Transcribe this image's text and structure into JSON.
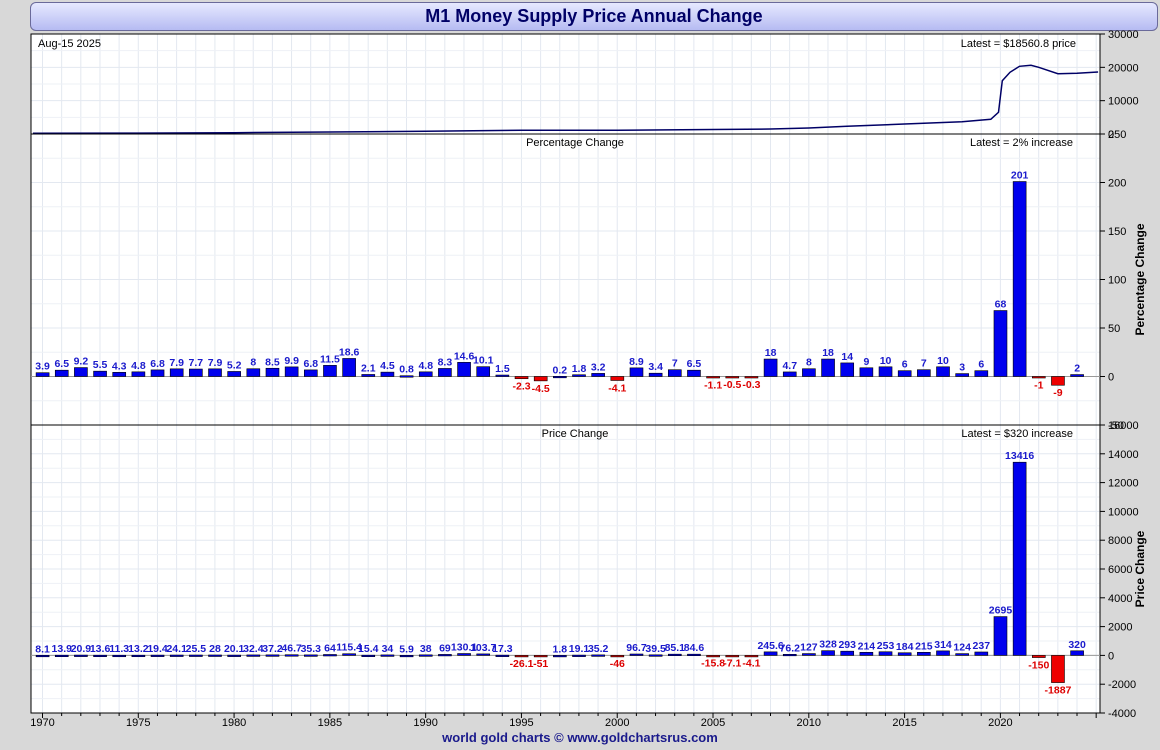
{
  "title": "M1 Money Supply Price Annual Change",
  "footer": "world gold charts © www.goldchartsrus.com",
  "colors": {
    "positive": "#0000ee",
    "negative": "#ee0000",
    "line": "#000066",
    "label_pos": "#1a1acc",
    "label_neg": "#dd0000"
  },
  "chart_data": [
    {
      "type": "line",
      "date_label": "Aug-15  2025",
      "annotation": "Latest = $18560.8 price",
      "ylim": [
        0,
        30000
      ],
      "yticks": [
        0,
        10000,
        20000,
        30000
      ],
      "x": [
        1969.5,
        1975,
        1980,
        1985,
        1990,
        1995,
        2000,
        2005,
        2008,
        2010,
        2012,
        2015,
        2018,
        2019.5,
        2019.9,
        2020.1,
        2020.5,
        2021,
        2021.6,
        2022,
        2023,
        2024,
        2025.1
      ],
      "y": [
        200,
        280,
        390,
        600,
        830,
        1100,
        1100,
        1360,
        1500,
        1800,
        2300,
        3000,
        3700,
        4400,
        6500,
        16000,
        18500,
        20300,
        20600,
        20000,
        18100,
        18200,
        18600
      ]
    },
    {
      "type": "bar",
      "label": "Percentage Change",
      "annotation": "Latest = 2% increase",
      "ylabel": "Percentage Change",
      "ylim": [
        -50,
        250
      ],
      "yticks": [
        -50,
        0,
        50,
        100,
        150,
        200,
        250
      ],
      "categories": [
        1970,
        1971,
        1972,
        1973,
        1974,
        1975,
        1976,
        1977,
        1978,
        1979,
        1980,
        1981,
        1982,
        1983,
        1984,
        1985,
        1986,
        1987,
        1988,
        1989,
        1990,
        1991,
        1992,
        1993,
        1994,
        1995,
        1996,
        1997,
        1998,
        1999,
        2000,
        2001,
        2002,
        2003,
        2004,
        2005,
        2006,
        2007,
        2008,
        2009,
        2010,
        2011,
        2012,
        2013,
        2014,
        2015,
        2016,
        2017,
        2018,
        2019,
        2020,
        2021,
        2022,
        2023,
        2024
      ],
      "values": [
        3.9,
        6.5,
        9.2,
        5.5,
        4.3,
        4.8,
        6.8,
        7.9,
        7.7,
        7.9,
        5.2,
        8,
        8.5,
        9.9,
        6.8,
        11.5,
        18.6,
        2.1,
        4.5,
        0.8,
        4.8,
        8.3,
        14.6,
        10.1,
        1.5,
        -2.3,
        -4.5,
        0.2,
        1.8,
        3.2,
        -4.1,
        8.9,
        3.4,
        7,
        6.5,
        -1.1,
        -0.5,
        -0.3,
        18,
        4.7,
        8,
        18,
        14,
        9,
        10,
        6,
        7,
        10,
        3,
        6,
        68,
        201,
        -1,
        -9,
        2
      ],
      "labels": [
        "3.9",
        "6.5",
        "9.2",
        "5.5",
        "4.3",
        "4.8",
        "6.8",
        "7.9",
        "7.7",
        "7.9",
        "5.2",
        "8",
        "8.5",
        "9.9",
        "6.8",
        "11.5",
        "18.6",
        "2.1",
        "4.5",
        "0.8",
        "4.8",
        "8.3",
        "14.6",
        "10.1",
        "1.5",
        "-2.3",
        "-4.5",
        "0.2",
        "1.8",
        "3.2",
        "-4.1",
        "8.9",
        "3.4",
        "7",
        "6.5",
        "-1.1",
        "-0.5",
        "-0.3",
        "18",
        "4.7",
        "8",
        "18",
        "14",
        "9",
        "10",
        "6",
        "7",
        "10",
        "3",
        "6",
        "68",
        "201",
        "-1",
        "-9",
        "2"
      ]
    },
    {
      "type": "bar",
      "label": "Price Change",
      "annotation": "Latest = $320 increase",
      "ylabel": "Price Change",
      "ylim": [
        -4000,
        16000
      ],
      "yticks": [
        -4000,
        -2000,
        0,
        2000,
        4000,
        6000,
        8000,
        10000,
        12000,
        14000,
        16000
      ],
      "categories": [
        1970,
        1971,
        1972,
        1973,
        1974,
        1975,
        1976,
        1977,
        1978,
        1979,
        1980,
        1981,
        1982,
        1983,
        1984,
        1985,
        1986,
        1987,
        1988,
        1989,
        1990,
        1991,
        1992,
        1993,
        1994,
        1995,
        1996,
        1997,
        1998,
        1999,
        2000,
        2001,
        2002,
        2003,
        2004,
        2005,
        2006,
        2007,
        2008,
        2009,
        2010,
        2011,
        2012,
        2013,
        2014,
        2015,
        2016,
        2017,
        2018,
        2019,
        2020,
        2021,
        2022,
        2023,
        2024
      ],
      "values": [
        8.1,
        13.9,
        20.9,
        13.6,
        11.3,
        13.2,
        19.4,
        24.1,
        25.5,
        28,
        20.1,
        32.4,
        37.2,
        46.7,
        35.3,
        64,
        115.4,
        15.4,
        34,
        5.9,
        38,
        69,
        130.1,
        103.7,
        17.3,
        -26.1,
        -51,
        1.8,
        19.1,
        35.2,
        -46,
        96.7,
        39.5,
        85.1,
        84.6,
        -15.8,
        -7.1,
        -4.1,
        245.6,
        76.2,
        127,
        328,
        293,
        214,
        253,
        184,
        215,
        314,
        124,
        237,
        2695,
        13416,
        -150,
        -1887,
        320
      ],
      "labels": [
        "8.1",
        "13.9",
        "20.9",
        "13.6",
        "11.3",
        "13.2",
        "19.4",
        "24.1",
        "25.5",
        "28",
        "20.1",
        "32.4",
        "37.2",
        "46.7",
        "35.3",
        "64",
        "115.4",
        "15.4",
        "34",
        "5.9",
        "38",
        "69",
        "130.1",
        "103.7",
        "17.3",
        "-26.1",
        "-51",
        "1.8",
        "19.1",
        "35.2",
        "-46",
        "96.7",
        "39.5",
        "85.1",
        "84.6",
        "-15.8",
        "-7.1",
        "-4.1",
        "245.6",
        "76.2",
        "127",
        "328",
        "293",
        "214",
        "253",
        "184",
        "215",
        "314",
        "124",
        "237",
        "2695",
        "13416",
        "-150",
        "-1887",
        "320"
      ]
    }
  ],
  "x_axis": {
    "ticks": [
      1970,
      1975,
      1980,
      1985,
      1990,
      1995,
      2000,
      2005,
      2010,
      2015,
      2020
    ],
    "range": [
      1969.4,
      2025.2
    ]
  }
}
